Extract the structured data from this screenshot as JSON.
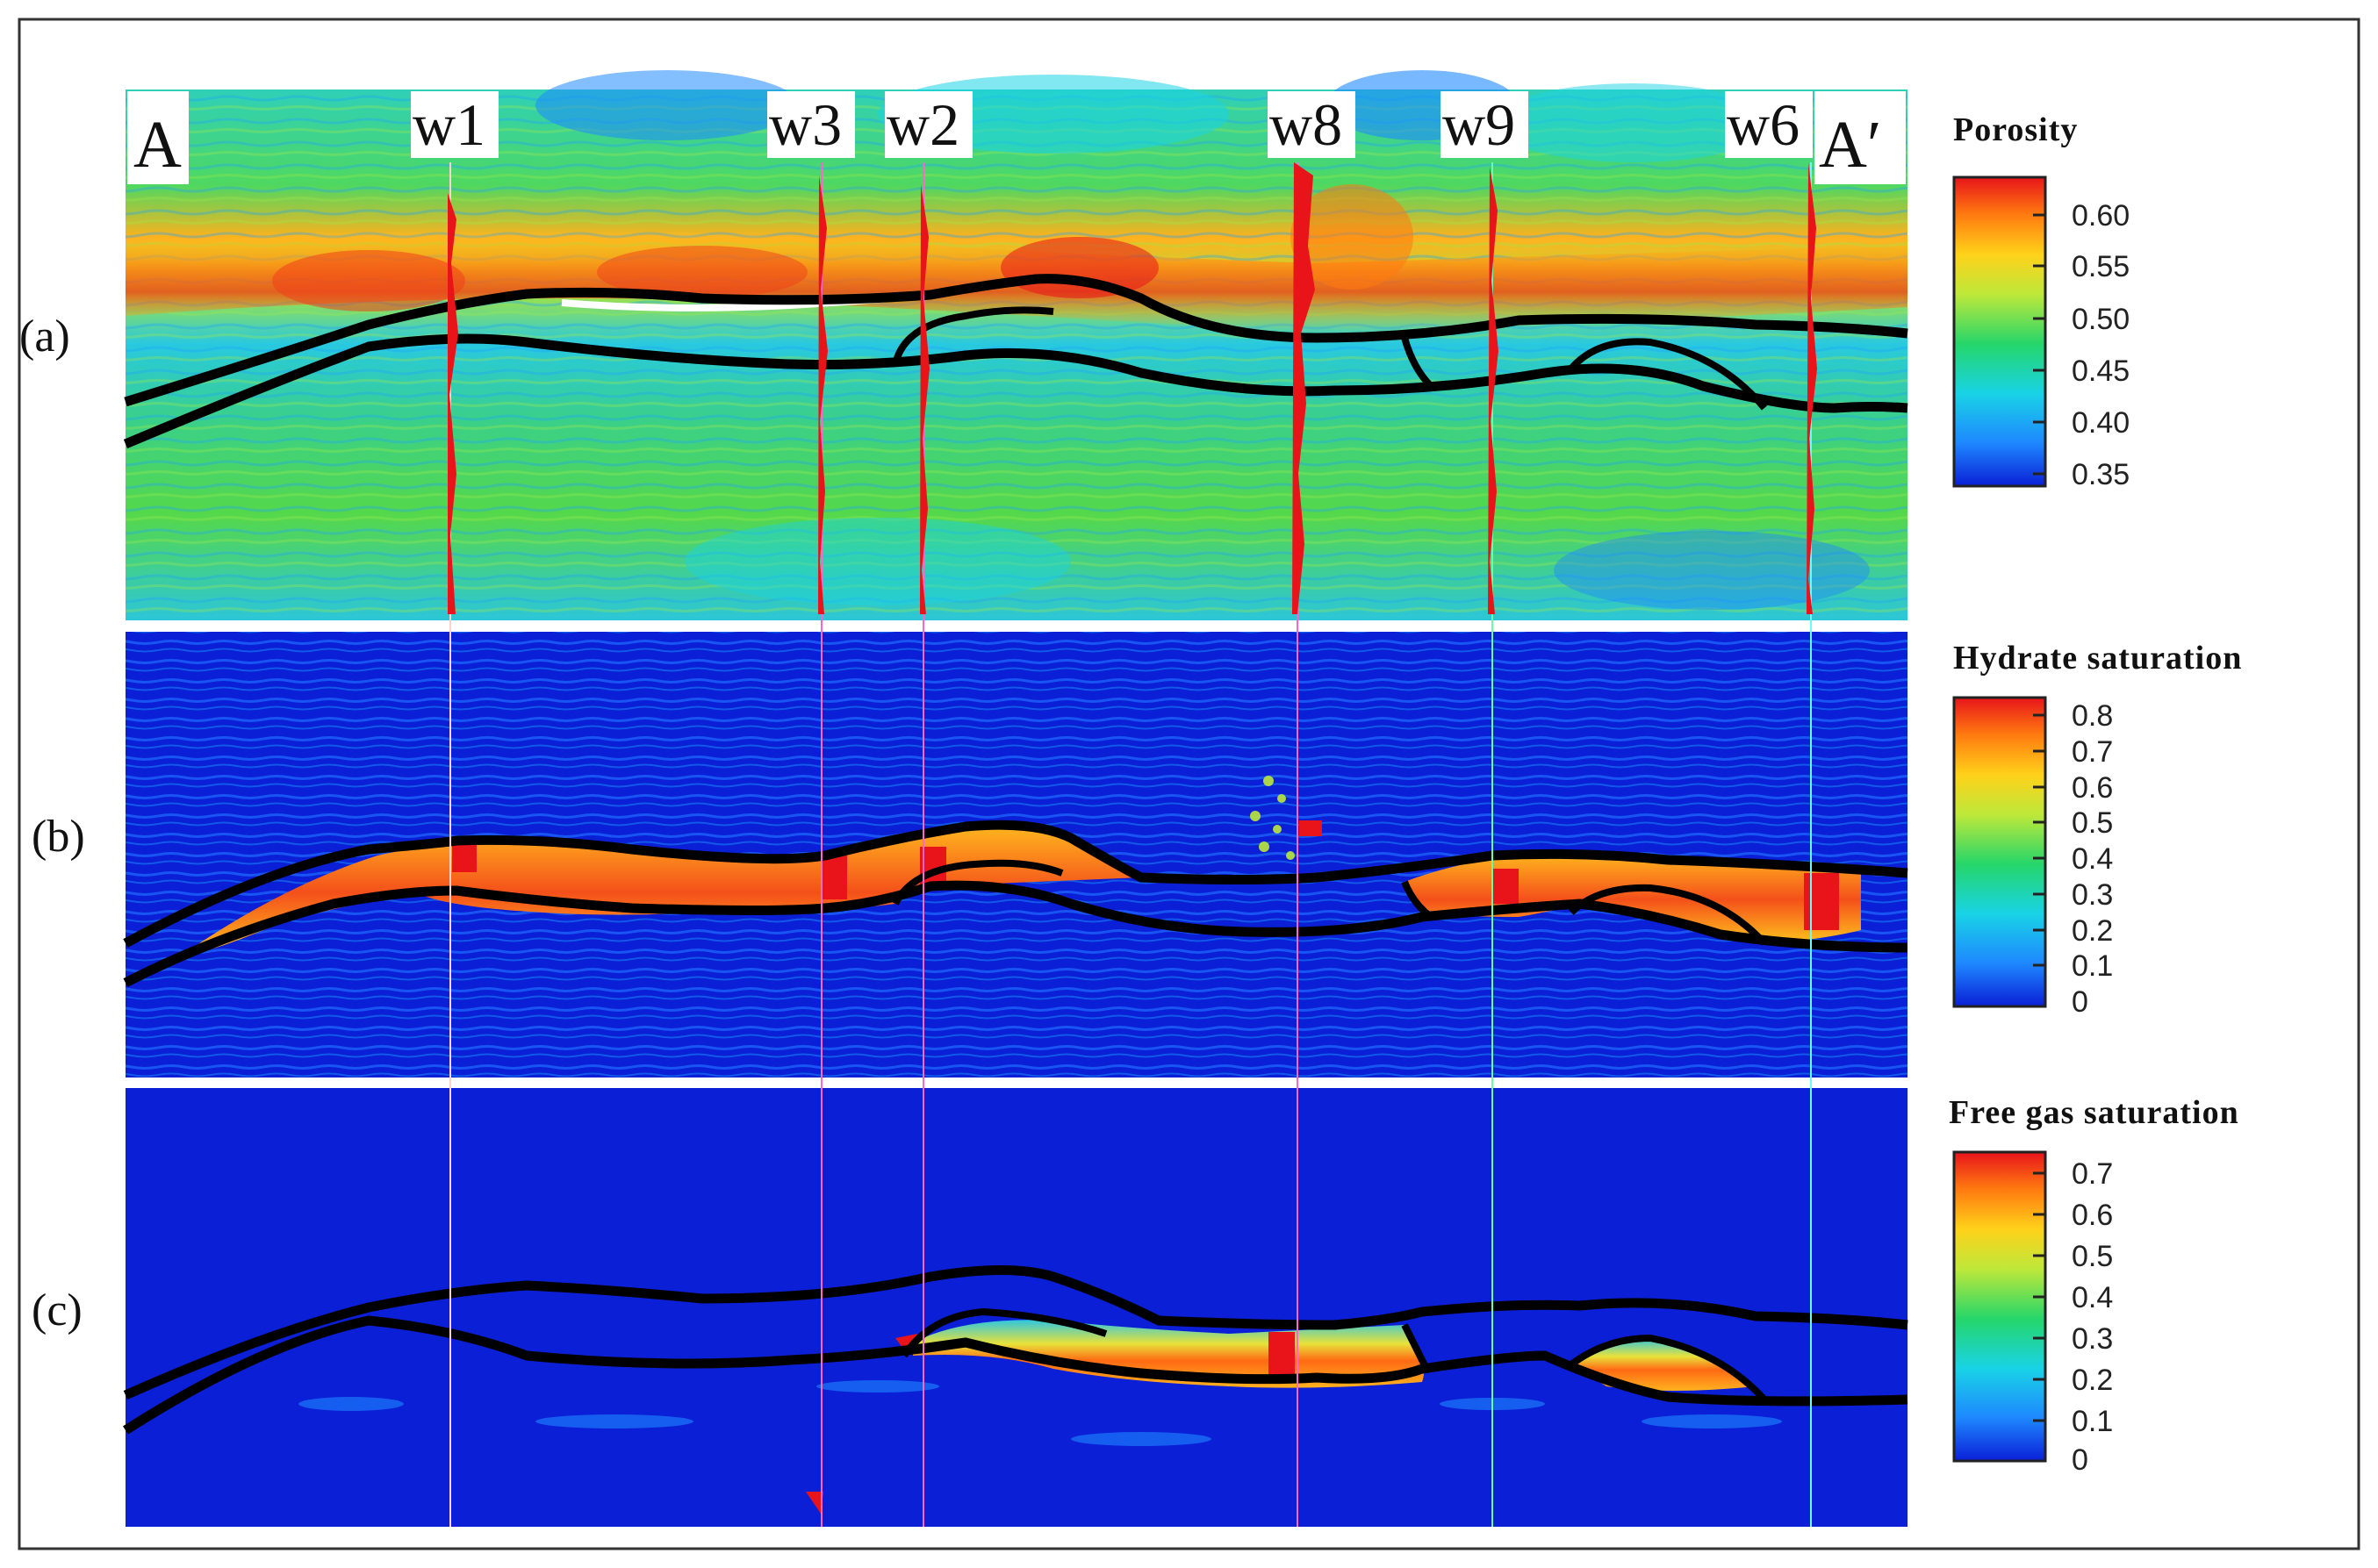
{
  "section": {
    "start_label": "A",
    "end_label": "A′",
    "wells": [
      "w1",
      "w3",
      "w2",
      "w8",
      "w9",
      "w6"
    ]
  },
  "panels": [
    {
      "id": "a",
      "label": "(a)",
      "colorbar": {
        "title": "Porosity",
        "ticks": [
          "0.60",
          "0.55",
          "0.50",
          "0.45",
          "0.40",
          "0.35"
        ]
      }
    },
    {
      "id": "b",
      "label": "(b)",
      "colorbar": {
        "title": "Hydrate saturation",
        "ticks": [
          "0.8",
          "0.7",
          "0.6",
          "0.5",
          "0.4",
          "0.3",
          "0.2",
          "0.1",
          "0"
        ]
      }
    },
    {
      "id": "c",
      "label": "(c)",
      "colorbar": {
        "title": "Free gas saturation",
        "ticks": [
          "0.7",
          "0.6",
          "0.5",
          "0.4",
          "0.3",
          "0.2",
          "0.1",
          "0"
        ]
      }
    }
  ],
  "colors": {
    "jet": [
      "#0a1fd6",
      "#1e88ff",
      "#19d3e6",
      "#25d66a",
      "#bde83a",
      "#ffd21a",
      "#ff7a10",
      "#e8141a"
    ],
    "background_deep": "#0a1fd6",
    "horizon": "#000000",
    "well_log": "#e8141a"
  }
}
